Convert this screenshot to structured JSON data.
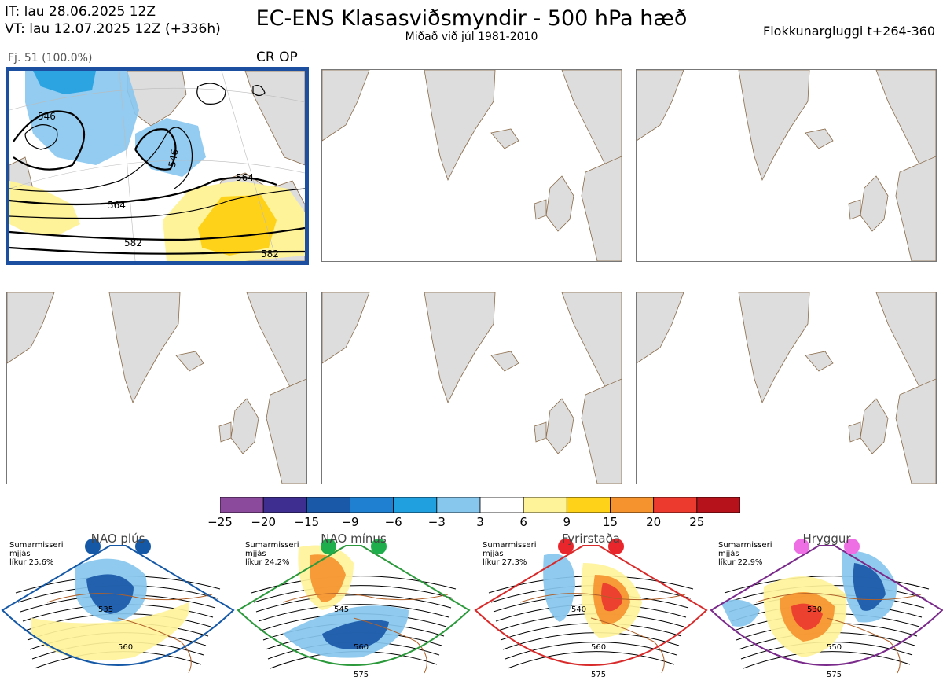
{
  "header": {
    "it": "IT: lau 28.06.2025 12Z",
    "vt": "VT: lau 12.07.2025 12Z  (+336h)",
    "title": "EC-ENS Klasasviðsmyndir - 500 hPa hæð",
    "subtitle": "Miðað við júl 1981-2010",
    "window": "Flokkunargluggi t+264-360"
  },
  "cluster": {
    "info": "Fj. 51 (100.0%)",
    "label": "CR OP",
    "contours": [
      "546",
      "546",
      "564",
      "564",
      "582",
      "582"
    ]
  },
  "colorbar": {
    "ticks": [
      "−25",
      "−20",
      "−15",
      "−9",
      "−6",
      "−3",
      "3",
      "6",
      "9",
      "15",
      "20",
      "25"
    ],
    "colors": [
      "#8b4a9c",
      "#3e2e8f",
      "#1a58a8",
      "#1f7fd0",
      "#21a0e0",
      "#87c7ee",
      "#ffffff",
      "#fff39a",
      "#ffd21a",
      "#f5932f",
      "#ec3a2f",
      "#b5121b"
    ]
  },
  "regimes": [
    {
      "title": "NAO plús",
      "note1": "Sumarmisseri",
      "note2": "mjjás",
      "note3": "líkur 25,6%",
      "dot_color": "#1558a6",
      "border_color": "#1558a6",
      "labels": [
        "535",
        "560"
      ]
    },
    {
      "title": "NAO mínus",
      "note1": "Sumarmisseri",
      "note2": "mjjás",
      "note3": "líkur 24,2%",
      "dot_color": "#1fae4c",
      "border_color": "#2c9a3c",
      "labels": [
        "545",
        "560",
        "575"
      ]
    },
    {
      "title": "Fyrirstaða",
      "note1": "Sumarmisseri",
      "note2": "mjjás",
      "note3": "líkur 27,3%",
      "dot_color": "#e8262b",
      "border_color": "#d82a2a",
      "labels": [
        "540",
        "560",
        "575"
      ]
    },
    {
      "title": "Hryggur",
      "note1": "Sumarmisseri",
      "note2": "mjjás",
      "note3": "líkur 22,9%",
      "dot_color": "#ee6fe4",
      "border_color": "#7a2a8a",
      "labels": [
        "530",
        "550",
        "575"
      ]
    }
  ]
}
